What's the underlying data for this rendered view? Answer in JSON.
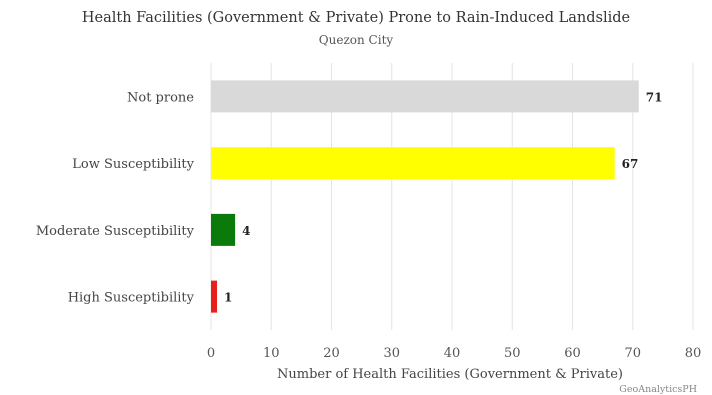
{
  "chart_data": {
    "type": "bar",
    "orientation": "horizontal",
    "title": "Health Facilities (Government & Private) Prone to Rain-Induced Landslide",
    "subtitle": "Quezon City",
    "xlabel": "Number of Health Facilities (Government & Private)",
    "ylabel": "",
    "xlim": [
      0,
      80
    ],
    "xticks": [
      0,
      10,
      20,
      30,
      40,
      50,
      60,
      70,
      80
    ],
    "grid": true,
    "categories": [
      "Not prone",
      "Low Susceptibility",
      "Moderate Susceptibility",
      "High Susceptibility"
    ],
    "values": [
      71,
      67,
      4,
      1
    ],
    "colors": [
      "#d9d9d9",
      "#ffff00",
      "#0a7a0a",
      "#e8201c"
    ],
    "data_labels": [
      "71",
      "67",
      "4",
      "1"
    ]
  },
  "credit": "GeoAnalyticsPH"
}
